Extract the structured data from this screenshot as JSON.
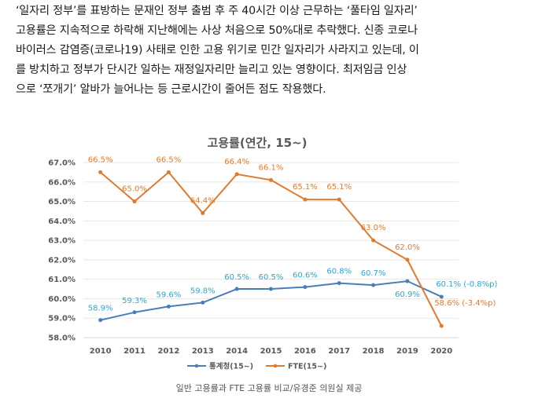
{
  "article": {
    "lines": [
      "‘일자리 정부’를 표방하는 문재인 정부 출범 후 주 40시간 이상 근무하는 ‘풀타임 일자리’",
      "고용률은 지속적으로 하락해 지난해에는 사상 처음으로 50%대로 추락했다. 신종 코로나",
      "바이러스 감염증(코로나19) 사태로 인한 고용 위기로 민간 일자리가 사라지고 있는데, 이",
      "를 방치하고 정부가 단시간 일하는 재정일자리만 늘리고 있는 영향이다. 최저임금 인상",
      "으로 ‘쪼개기’ 알바가 늘어나는 등 근로시간이 줄어든 점도 작용했다."
    ]
  },
  "caption": "일반 고용률과 FTE 고용률 비교/유경준 의원실 제공",
  "chart_data": {
    "type": "line",
    "title": "고용률(연간, 15~)",
    "xlabel": "",
    "ylabel": "",
    "x": [
      "2010",
      "2011",
      "2012",
      "2013",
      "2014",
      "2015",
      "2016",
      "2017",
      "2018",
      "2019",
      "2020"
    ],
    "yticks": [
      "58.0%",
      "59.0%",
      "60.0%",
      "61.0%",
      "62.0%",
      "63.0%",
      "64.0%",
      "65.0%",
      "66.0%",
      "67.0%"
    ],
    "ylim": [
      58.0,
      67.0
    ],
    "grid": true,
    "legend_position": "bottom",
    "series": [
      {
        "name": "통계청(15~)",
        "color": "#4a7ebb",
        "label_color": "#2aa7d6",
        "values": [
          58.9,
          59.3,
          59.6,
          59.8,
          60.5,
          60.5,
          60.6,
          60.8,
          60.7,
          60.9,
          60.1
        ],
        "labels": [
          "58.9%",
          "59.3%",
          "59.6%",
          "59.8%",
          "60.5%",
          "60.5%",
          "60.6%",
          "60.8%",
          "60.7%",
          "60.9%",
          "60.1% (-0.8%p)"
        ]
      },
      {
        "name": "FTE(15~)",
        "color": "#e07b2e",
        "label_color": "#e07b2e",
        "values": [
          66.5,
          65.0,
          66.5,
          64.4,
          66.4,
          66.1,
          65.1,
          65.1,
          63.0,
          62.0,
          58.6
        ],
        "labels": [
          "66.5%",
          "65.0%",
          "66.5%",
          "64.4%",
          "66.4%",
          "66.1%",
          "65.1%",
          "65.1%",
          "63.0%",
          "62.0%",
          "58.6% (-3.4%p)"
        ]
      }
    ]
  }
}
